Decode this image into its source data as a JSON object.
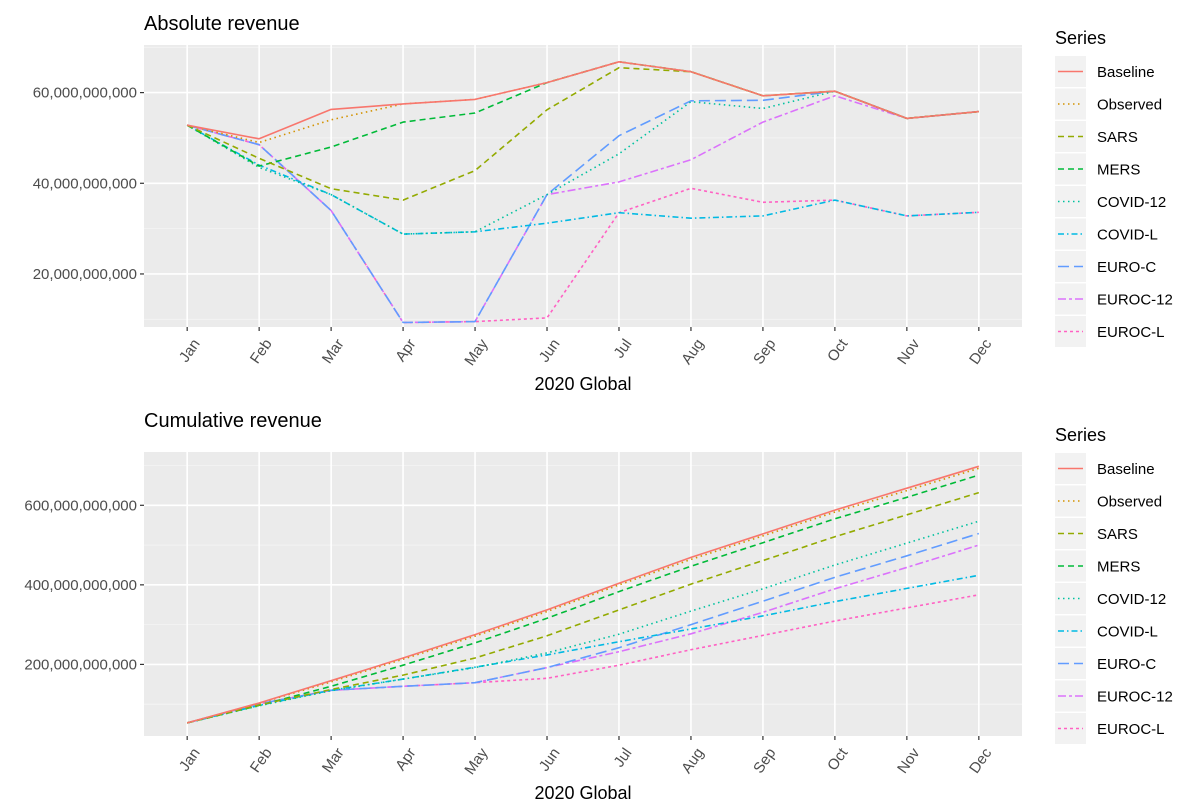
{
  "chart_data": [
    {
      "type": "line",
      "title": "Absolute revenue",
      "xlabel": "2020 Global",
      "ylabel": "",
      "categories": [
        "Jan",
        "Feb",
        "Mar",
        "Apr",
        "May",
        "Jun",
        "Jul",
        "Aug",
        "Sep",
        "Oct",
        "Nov",
        "Dec"
      ],
      "ylim": [
        8300000000,
        70500000000
      ],
      "yticks": [
        20000000000,
        40000000000,
        60000000000
      ],
      "ytick_labels": [
        "20,000,000,000",
        "40,000,000,000",
        "60,000,000,000"
      ],
      "grid": true,
      "legend": {
        "title": "Series",
        "placement": "right"
      },
      "series": [
        {
          "name": "Baseline",
          "color": "#F8766D",
          "dash": "solid",
          "values": [
            52.8,
            49.8,
            56.3,
            57.5,
            58.5,
            62.2,
            66.8,
            64.6,
            59.3,
            60.3,
            54.3,
            55.8
          ]
        },
        {
          "name": "Observed",
          "color": "#D39200",
          "dash": "dot",
          "values": [
            52.8,
            49.0,
            54.0,
            57.5,
            58.5,
            62.2,
            66.8,
            64.6,
            59.3,
            60.3,
            54.3,
            55.8
          ]
        },
        {
          "name": "SARS",
          "color": "#93AA00",
          "dash": "dash",
          "values": [
            52.8,
            45.5,
            38.8,
            36.3,
            42.8,
            56.2,
            65.5,
            64.6,
            59.3,
            60.3,
            54.3,
            55.8
          ]
        },
        {
          "name": "MERS",
          "color": "#00BA38",
          "dash": "dash",
          "values": [
            52.8,
            43.8,
            48.0,
            53.5,
            55.5,
            62.2,
            66.8,
            64.6,
            59.3,
            60.3,
            54.3,
            55.8
          ]
        },
        {
          "name": "COVID-12",
          "color": "#00C19F",
          "dash": "dot",
          "values": [
            52.8,
            43.5,
            37.5,
            28.8,
            29.3,
            37.5,
            46.5,
            58.0,
            56.5,
            60.3,
            54.3,
            55.8
          ]
        },
        {
          "name": "COVID-L",
          "color": "#00B9E3",
          "dash": "dashdot",
          "values": [
            52.8,
            44.0,
            37.5,
            28.8,
            29.3,
            31.2,
            33.5,
            32.3,
            32.8,
            36.3,
            32.8,
            33.6
          ]
        },
        {
          "name": "EURO-C",
          "color": "#619CFF",
          "dash": "longdash",
          "values": [
            52.8,
            48.5,
            34.0,
            9.3,
            9.5,
            37.5,
            50.5,
            58.2,
            58.3,
            60.3,
            54.3,
            55.8
          ]
        },
        {
          "name": "EUROC-12",
          "color": "#DB72FB",
          "dash": "twodash",
          "values": [
            52.8,
            48.5,
            34.0,
            9.3,
            9.5,
            37.5,
            40.3,
            45.2,
            53.5,
            59.3,
            54.3,
            55.8
          ]
        },
        {
          "name": "EUROC-L",
          "color": "#FF61C3",
          "dash": "shortdash",
          "values": [
            52.8,
            48.5,
            34.0,
            9.3,
            9.5,
            10.3,
            33.5,
            38.9,
            35.8,
            36.3,
            32.8,
            33.6
          ]
        }
      ],
      "value_unit_multiplier": 1000000000
    },
    {
      "type": "line",
      "title": "Cumulative revenue",
      "xlabel": "2020 Global",
      "ylabel": "",
      "categories": [
        "Jan",
        "Feb",
        "Mar",
        "Apr",
        "May",
        "Jun",
        "Jul",
        "Aug",
        "Sep",
        "Oct",
        "Nov",
        "Dec"
      ],
      "ylim": [
        20000000000,
        734000000000
      ],
      "yticks": [
        200000000000,
        400000000000,
        600000000000
      ],
      "ytick_labels": [
        "200,000,000,000",
        "400,000,000,000",
        "600,000,000,000"
      ],
      "grid": true,
      "legend": {
        "title": "Series",
        "placement": "right"
      },
      "series": [
        {
          "name": "Baseline",
          "color": "#F8766D",
          "dash": "solid",
          "values": [
            53,
            103,
            159,
            216,
            275,
            337,
            404,
            469,
            528,
            588,
            643,
            698
          ]
        },
        {
          "name": "Observed",
          "color": "#D39200",
          "dash": "dot",
          "values": [
            53,
            102,
            156,
            213,
            271,
            333,
            400,
            464,
            523,
            583,
            637,
            693
          ]
        },
        {
          "name": "SARS",
          "color": "#93AA00",
          "dash": "dash",
          "values": [
            53,
            98,
            137,
            173,
            216,
            272,
            337,
            402,
            461,
            521,
            576,
            632
          ]
        },
        {
          "name": "MERS",
          "color": "#00BA38",
          "dash": "dash",
          "values": [
            53,
            97,
            145,
            198,
            254,
            316,
            383,
            447,
            506,
            566,
            620,
            676
          ]
        },
        {
          "name": "COVID-12",
          "color": "#00C19F",
          "dash": "dot",
          "values": [
            53,
            96,
            134,
            163,
            192,
            229,
            276,
            334,
            390,
            450,
            505,
            560
          ]
        },
        {
          "name": "COVID-L",
          "color": "#00B9E3",
          "dash": "dashdot",
          "values": [
            53,
            97,
            135,
            163,
            193,
            224,
            257,
            289,
            322,
            358,
            391,
            424
          ]
        },
        {
          "name": "EURO-C",
          "color": "#619CFF",
          "dash": "longdash",
          "values": [
            53,
            101,
            135,
            145,
            154,
            192,
            242,
            300,
            359,
            419,
            473,
            529
          ]
        },
        {
          "name": "EUROC-12",
          "color": "#DB72FB",
          "dash": "twodash",
          "values": [
            53,
            101,
            135,
            145,
            154,
            192,
            232,
            277,
            331,
            390,
            444,
            500
          ]
        },
        {
          "name": "EUROC-L",
          "color": "#FF61C3",
          "dash": "shortdash",
          "values": [
            53,
            101,
            135,
            145,
            154,
            165,
            198,
            237,
            273,
            309,
            342,
            375
          ]
        }
      ],
      "value_unit_multiplier": 1000000000
    }
  ]
}
